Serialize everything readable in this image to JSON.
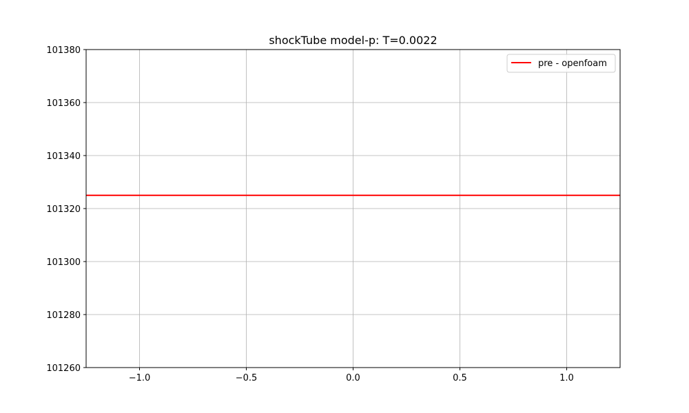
{
  "chart_data": {
    "type": "line",
    "title": "shockTube model-p: T=0.0022",
    "xlabel": "",
    "ylabel": "",
    "xlim": [
      -1.25,
      1.25
    ],
    "ylim": [
      101260,
      101380
    ],
    "x_ticks": [
      -1.0,
      -0.5,
      0.0,
      0.5,
      1.0
    ],
    "x_tick_labels": [
      "−1.0",
      "−0.5",
      "0.0",
      "0.5",
      "1.0"
    ],
    "y_ticks": [
      101260,
      101280,
      101300,
      101320,
      101340,
      101360,
      101380
    ],
    "y_tick_labels": [
      "101260",
      "101280",
      "101300",
      "101320",
      "101340",
      "101360",
      "101380"
    ],
    "grid": true,
    "legend_position": "top-right",
    "series": [
      {
        "name": "pre - openfoam",
        "color": "#ff0000",
        "x": [
          -1.25,
          1.25
        ],
        "y": [
          101325,
          101325
        ]
      }
    ]
  }
}
